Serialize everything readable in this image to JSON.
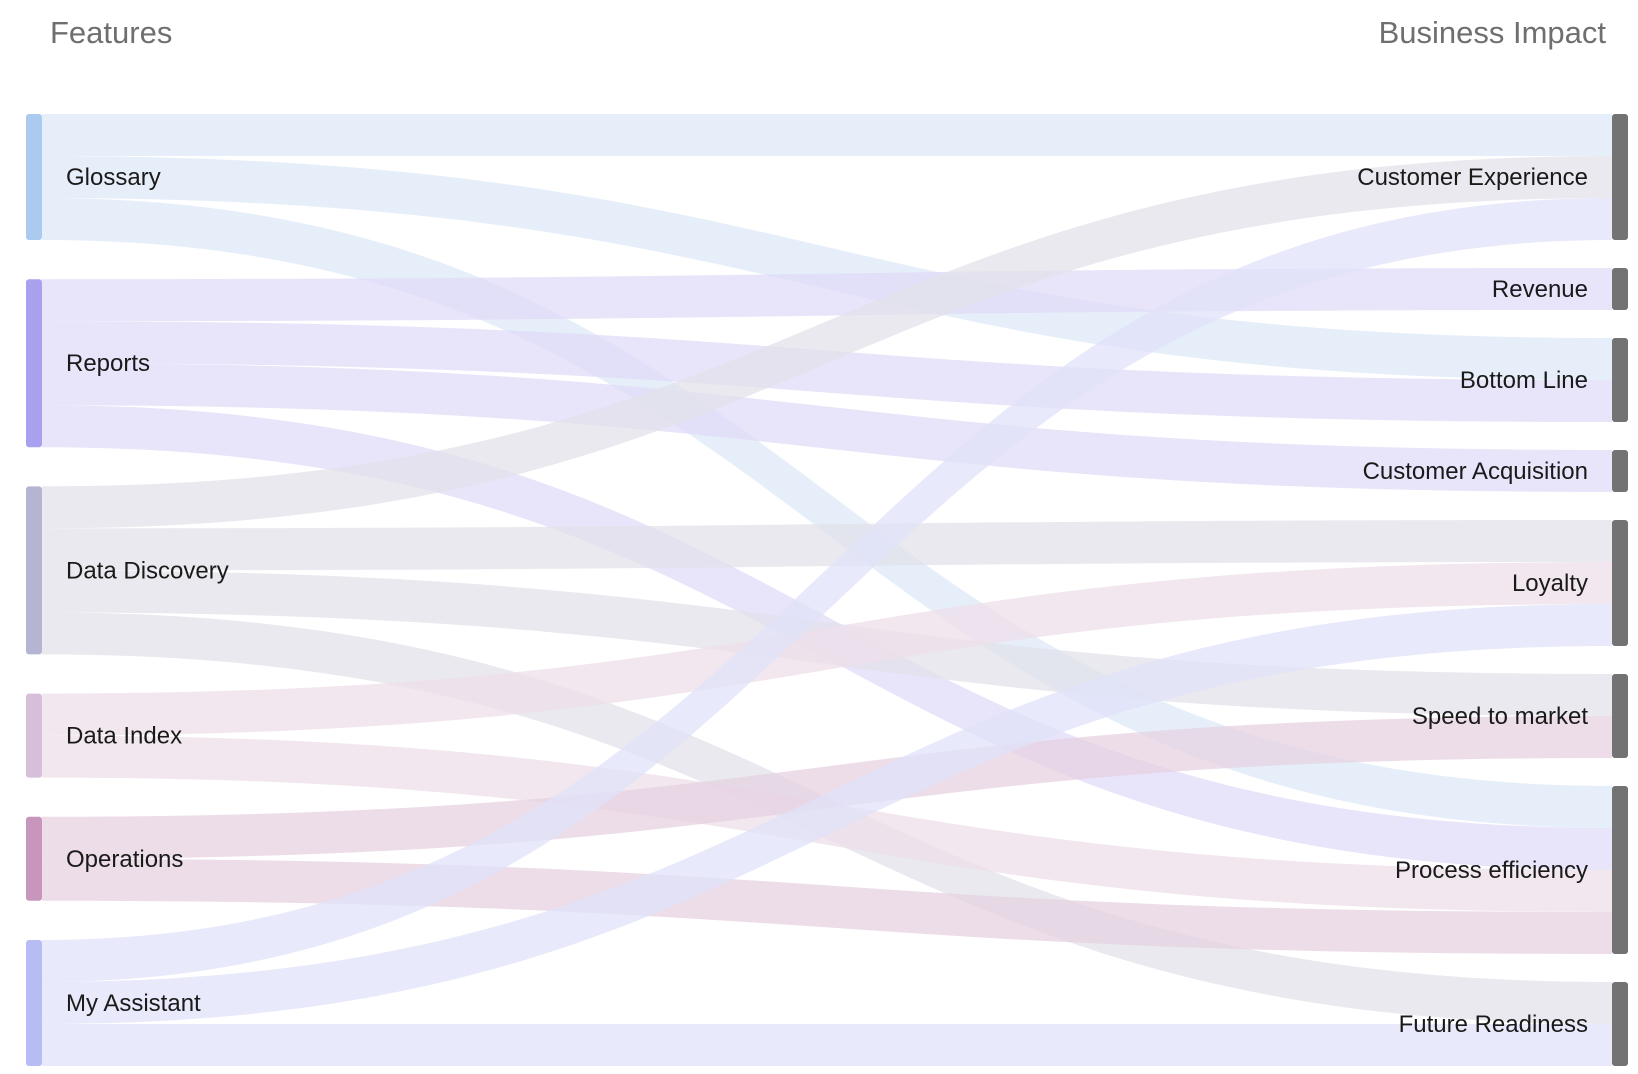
{
  "headers": {
    "left": "Features",
    "right": "Business Impact"
  },
  "sources": [
    {
      "id": "glossary",
      "label": "Glossary",
      "color": "#aacbef",
      "link_color": "#dde9f7"
    },
    {
      "id": "reports",
      "label": "Reports",
      "color": "#aaa0f0",
      "link_color": "#e0dbf8"
    },
    {
      "id": "data-discovery",
      "label": "Data Discovery",
      "color": "#b5b5d3",
      "link_color": "#e2e2ea"
    },
    {
      "id": "data-index",
      "label": "Data Index",
      "color": "#d7bfda",
      "link_color": "#eedfea"
    },
    {
      "id": "operations",
      "label": "Operations",
      "color": "#c896bd",
      "link_color": "#e6d2e1"
    },
    {
      "id": "my-assistant",
      "label": "My Assistant",
      "color": "#b7bcf5",
      "link_color": "#e0e2f8"
    }
  ],
  "targets": [
    {
      "id": "customer-experience",
      "label": "Customer Experience"
    },
    {
      "id": "revenue",
      "label": "Revenue"
    },
    {
      "id": "bottom-line",
      "label": "Bottom Line"
    },
    {
      "id": "customer-acquisition",
      "label": "Customer Acquisition"
    },
    {
      "id": "loyalty",
      "label": "Loyalty"
    },
    {
      "id": "speed-to-market",
      "label": "Speed to market"
    },
    {
      "id": "process-efficiency",
      "label": "Process efficiency"
    },
    {
      "id": "future-readiness",
      "label": "Future Readiness"
    }
  ],
  "target_bar_color": "#737373",
  "chart_data": {
    "type": "sankey",
    "links": [
      {
        "source": "glossary",
        "target": "customer-experience",
        "value": 1
      },
      {
        "source": "glossary",
        "target": "bottom-line",
        "value": 1
      },
      {
        "source": "glossary",
        "target": "process-efficiency",
        "value": 1
      },
      {
        "source": "reports",
        "target": "revenue",
        "value": 1
      },
      {
        "source": "reports",
        "target": "bottom-line",
        "value": 1
      },
      {
        "source": "reports",
        "target": "customer-acquisition",
        "value": 1
      },
      {
        "source": "reports",
        "target": "process-efficiency",
        "value": 1
      },
      {
        "source": "data-discovery",
        "target": "customer-experience",
        "value": 1
      },
      {
        "source": "data-discovery",
        "target": "loyalty",
        "value": 1
      },
      {
        "source": "data-discovery",
        "target": "speed-to-market",
        "value": 1
      },
      {
        "source": "data-discovery",
        "target": "future-readiness",
        "value": 1
      },
      {
        "source": "data-index",
        "target": "loyalty",
        "value": 1
      },
      {
        "source": "data-index",
        "target": "process-efficiency",
        "value": 1
      },
      {
        "source": "operations",
        "target": "speed-to-market",
        "value": 1
      },
      {
        "source": "operations",
        "target": "process-efficiency",
        "value": 1
      },
      {
        "source": "my-assistant",
        "target": "customer-experience",
        "value": 1
      },
      {
        "source": "my-assistant",
        "target": "loyalty",
        "value": 1
      },
      {
        "source": "my-assistant",
        "target": "future-readiness",
        "value": 1
      }
    ]
  }
}
